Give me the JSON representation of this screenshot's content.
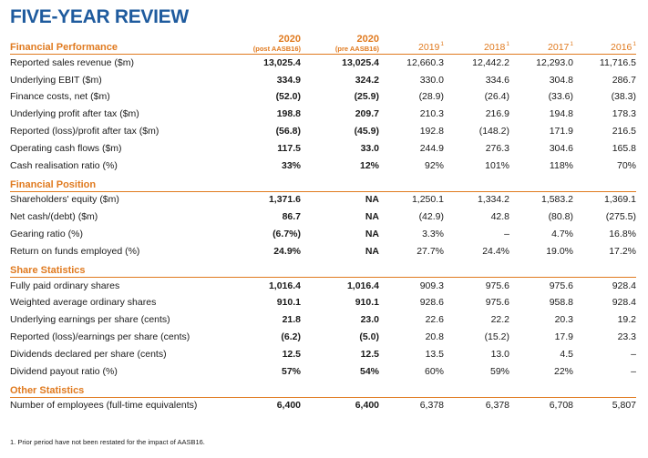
{
  "title": "FIVE-YEAR REVIEW",
  "columns": {
    "c2020_post": {
      "year": "2020",
      "sub": "(post AASB16)"
    },
    "c2020_pre": {
      "year": "2020",
      "sub": "(pre AASB16)"
    },
    "c2019": {
      "year": "2019",
      "sup": "1"
    },
    "c2018": {
      "year": "2018",
      "sup": "1"
    },
    "c2017": {
      "year": "2017",
      "sup": "1"
    },
    "c2016": {
      "year": "2016",
      "sup": "1"
    }
  },
  "sections": [
    {
      "heading": "Financial Performance",
      "rows": [
        {
          "label": "Reported sales revenue ($m)",
          "v": [
            "13,025.4",
            "13,025.4",
            "12,660.3",
            "12,442.2",
            "12,293.0",
            "11,716.5"
          ]
        },
        {
          "label": "Underlying EBIT ($m)",
          "v": [
            "334.9",
            "324.2",
            "330.0",
            "334.6",
            "304.8",
            "286.7"
          ]
        },
        {
          "label": "Finance costs, net ($m)",
          "v": [
            "(52.0)",
            "(25.9)",
            "(28.9)",
            "(26.4)",
            "(33.6)",
            "(38.3)"
          ]
        },
        {
          "label": "Underlying profit after tax ($m)",
          "v": [
            "198.8",
            "209.7",
            "210.3",
            "216.9",
            "194.8",
            "178.3"
          ]
        },
        {
          "label": "Reported (loss)/profit after tax ($m)",
          "v": [
            "(56.8)",
            "(45.9)",
            "192.8",
            "(148.2)",
            "171.9",
            "216.5"
          ]
        },
        {
          "label": "Operating cash flows ($m)",
          "v": [
            "117.5",
            "33.0",
            "244.9",
            "276.3",
            "304.6",
            "165.8"
          ]
        },
        {
          "label": "Cash realisation ratio (%)",
          "v": [
            "33%",
            "12%",
            "92%",
            "101%",
            "118%",
            "70%"
          ]
        }
      ]
    },
    {
      "heading": "Financial Position",
      "rows": [
        {
          "label": "Shareholders' equity ($m)",
          "v": [
            "1,371.6",
            "NA",
            "1,250.1",
            "1,334.2",
            "1,583.2",
            "1,369.1"
          ]
        },
        {
          "label": "Net cash/(debt) ($m)",
          "v": [
            "86.7",
            "NA",
            "(42.9)",
            "42.8",
            "(80.8)",
            "(275.5)"
          ]
        },
        {
          "label": "Gearing ratio (%)",
          "v": [
            "(6.7%)",
            "NA",
            "3.3%",
            "–",
            "4.7%",
            "16.8%"
          ]
        },
        {
          "label": "Return on funds employed (%)",
          "v": [
            "24.9%",
            "NA",
            "27.7%",
            "24.4%",
            "19.0%",
            "17.2%"
          ]
        }
      ]
    },
    {
      "heading": "Share Statistics",
      "rows": [
        {
          "label": "Fully paid ordinary shares",
          "v": [
            "1,016.4",
            "1,016.4",
            "909.3",
            "975.6",
            "975.6",
            "928.4"
          ]
        },
        {
          "label": "Weighted average ordinary shares",
          "v": [
            "910.1",
            "910.1",
            "928.6",
            "975.6",
            "958.8",
            "928.4"
          ]
        },
        {
          "label": "Underlying earnings per share (cents)",
          "v": [
            "21.8",
            "23.0",
            "22.6",
            "22.2",
            "20.3",
            "19.2"
          ]
        },
        {
          "label": "Reported (loss)/earnings per share (cents)",
          "v": [
            "(6.2)",
            "(5.0)",
            "20.8",
            "(15.2)",
            "17.9",
            "23.3"
          ]
        },
        {
          "label": "Dividends declared per share (cents)",
          "v": [
            "12.5",
            "12.5",
            "13.5",
            "13.0",
            "4.5",
            "–"
          ]
        },
        {
          "label": "Dividend payout ratio (%)",
          "v": [
            "57%",
            "54%",
            "60%",
            "59%",
            "22%",
            "–"
          ]
        }
      ]
    },
    {
      "heading": "Other Statistics",
      "rows": [
        {
          "label": "Number of employees (full-time equivalents)",
          "v": [
            "6,400",
            "6,400",
            "6,378",
            "6,378",
            "6,708",
            "5,807"
          ]
        }
      ]
    }
  ],
  "footnote": "1.  Prior period have not been restated for the impact of AASB16.",
  "colors": {
    "title": "#1f5b9e",
    "accent": "#e07a1f"
  }
}
